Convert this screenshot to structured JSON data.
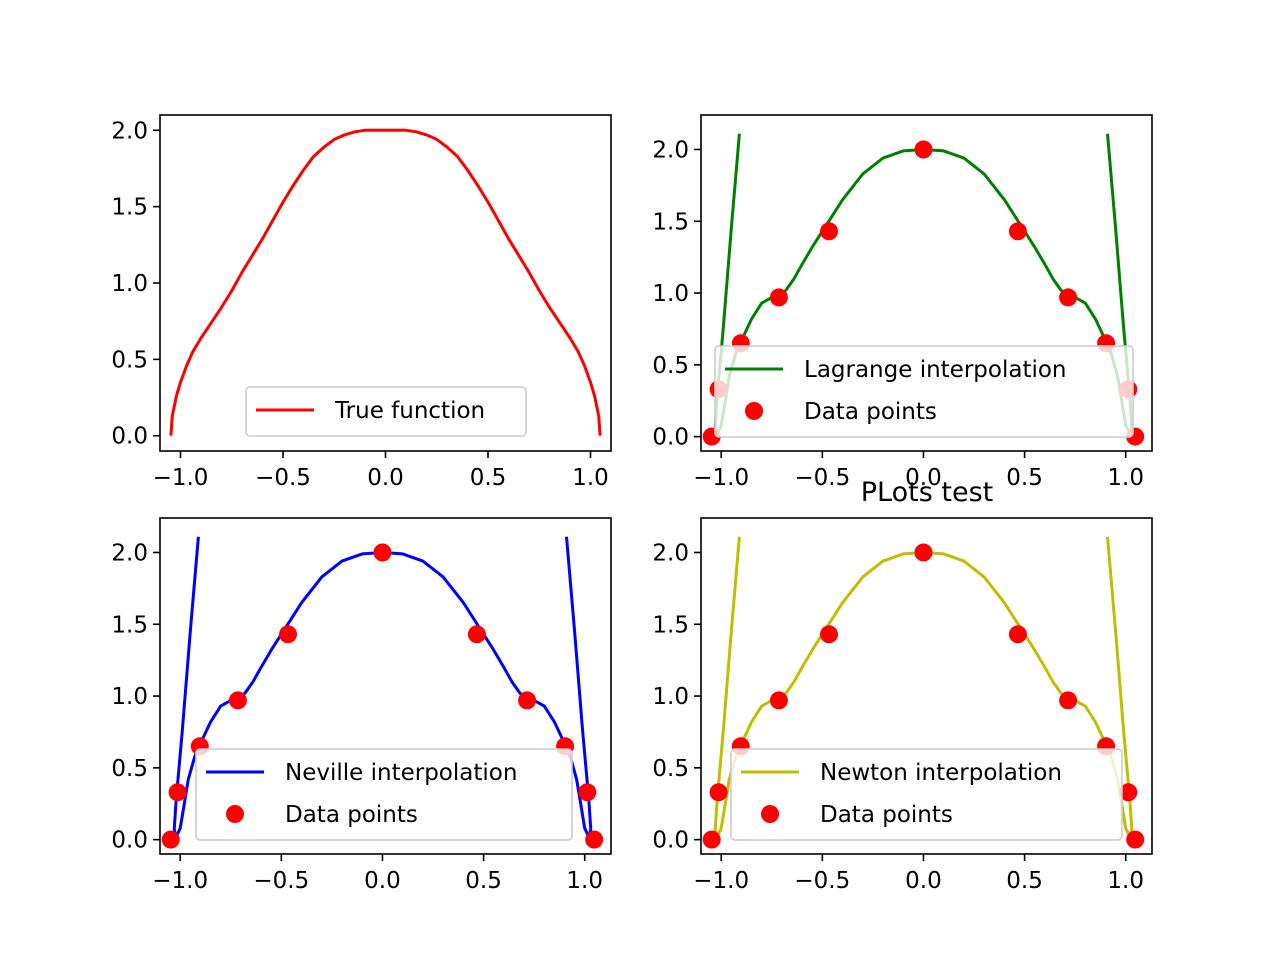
{
  "figure": {
    "title": "PLots test"
  },
  "chart_data": [
    {
      "type": "line",
      "xlim": [
        -1.1,
        1.1
      ],
      "ylim": [
        -0.1,
        2.1
      ],
      "xticks": [
        -1.0,
        -0.5,
        0.0,
        0.5,
        1.0
      ],
      "xtick_labels": [
        "−1.0",
        "−0.5",
        "0.0",
        "0.5",
        "1.0"
      ],
      "yticks": [
        0.0,
        0.5,
        1.0,
        1.5,
        2.0
      ],
      "ytick_labels": [
        "0.0",
        "0.5",
        "1.0",
        "1.5",
        "2.0"
      ],
      "legend_position": "lower center",
      "series": [
        {
          "name": "True function",
          "kind": "line",
          "color": "#ff0000",
          "x": [
            -1.047,
            -1.04,
            -1.02,
            -1.0,
            -0.97,
            -0.94,
            -0.9,
            -0.85,
            -0.8,
            -0.75,
            -0.7,
            -0.65,
            -0.6,
            -0.55,
            -0.5,
            -0.45,
            -0.4,
            -0.35,
            -0.3,
            -0.25,
            -0.2,
            -0.15,
            -0.1,
            -0.05,
            0.0,
            0.05,
            0.1,
            0.15,
            0.2,
            0.25,
            0.3,
            0.35,
            0.4,
            0.45,
            0.5,
            0.55,
            0.6,
            0.65,
            0.7,
            0.75,
            0.8,
            0.85,
            0.9,
            0.94,
            0.97,
            1.0,
            1.02,
            1.04,
            1.047
          ],
          "y": [
            0.0,
            0.13,
            0.26,
            0.35,
            0.46,
            0.55,
            0.64,
            0.74,
            0.84,
            0.95,
            1.07,
            1.18,
            1.29,
            1.41,
            1.53,
            1.64,
            1.74,
            1.83,
            1.89,
            1.94,
            1.97,
            1.99,
            2.0,
            2.0,
            2.0,
            2.0,
            2.0,
            1.99,
            1.97,
            1.94,
            1.89,
            1.83,
            1.74,
            1.64,
            1.53,
            1.41,
            1.29,
            1.18,
            1.07,
            0.95,
            0.84,
            0.74,
            0.64,
            0.55,
            0.46,
            0.35,
            0.26,
            0.13,
            0.0
          ]
        }
      ]
    },
    {
      "type": "line",
      "xlim": [
        -1.1,
        1.13
      ],
      "ylim": [
        -0.1,
        2.24
      ],
      "xticks": [
        -1.0,
        -0.5,
        0.0,
        0.5,
        1.0
      ],
      "xtick_labels": [
        "−1.0",
        "−0.5",
        "0.0",
        "0.5",
        "1.0"
      ],
      "yticks": [
        0.0,
        0.5,
        1.0,
        1.5,
        2.0
      ],
      "ytick_labels": [
        "0.0",
        "0.5",
        "1.0",
        "1.5",
        "2.0"
      ],
      "legend_position": "lower center",
      "series": [
        {
          "name": "Lagrange interpolation",
          "kind": "line",
          "color": "#008000",
          "x": [
            -0.91,
            -0.95,
            -0.99,
            -1.02,
            -1.03,
            -1.02,
            -1.0,
            -0.98,
            -0.96,
            -0.93,
            -0.91,
            -0.89,
            -0.85,
            -0.8,
            -0.75,
            -0.72,
            -0.68,
            -0.64,
            -0.6,
            -0.55,
            -0.5,
            -0.45,
            -0.4,
            -0.3,
            -0.2,
            -0.1,
            0.0,
            0.1,
            0.2,
            0.3,
            0.4,
            0.45,
            0.5,
            0.55,
            0.6,
            0.64,
            0.68,
            0.72,
            0.75,
            0.8,
            0.85,
            0.89,
            0.91,
            0.93,
            0.96,
            0.98,
            1.0,
            1.02,
            1.03,
            1.02,
            0.99,
            0.95,
            0.91
          ],
          "y": [
            2.11,
            1.45,
            0.75,
            0.28,
            0.07,
            0.02,
            0.08,
            0.25,
            0.42,
            0.57,
            0.65,
            0.7,
            0.82,
            0.93,
            0.97,
            0.98,
            1.02,
            1.1,
            1.2,
            1.32,
            1.43,
            1.54,
            1.65,
            1.83,
            1.94,
            1.99,
            2.0,
            1.99,
            1.94,
            1.83,
            1.65,
            1.54,
            1.43,
            1.32,
            1.2,
            1.1,
            1.02,
            0.98,
            0.97,
            0.93,
            0.82,
            0.7,
            0.65,
            0.57,
            0.42,
            0.25,
            0.08,
            0.02,
            0.07,
            0.28,
            0.75,
            1.45,
            2.11
          ]
        },
        {
          "name": "Data points",
          "kind": "scatter",
          "color": "#ff0000",
          "x": [
            -1.047,
            -1.013,
            -0.903,
            -0.715,
            -0.467,
            0.0,
            0.467,
            0.715,
            0.903,
            1.013,
            1.047
          ],
          "y": [
            0.0,
            0.33,
            0.65,
            0.97,
            1.43,
            2.0,
            1.43,
            0.97,
            0.65,
            0.33,
            0.0
          ]
        }
      ]
    },
    {
      "type": "line",
      "xlim": [
        -1.1,
        1.13
      ],
      "ylim": [
        -0.1,
        2.24
      ],
      "xticks": [
        -1.0,
        -0.5,
        0.0,
        0.5,
        1.0
      ],
      "xtick_labels": [
        "−1.0",
        "−0.5",
        "0.0",
        "0.5",
        "1.0"
      ],
      "yticks": [
        0.0,
        0.5,
        1.0,
        1.5,
        2.0
      ],
      "ytick_labels": [
        "0.0",
        "0.5",
        "1.0",
        "1.5",
        "2.0"
      ],
      "legend_position": "lower center",
      "series": [
        {
          "name": "Neville interpolation",
          "kind": "line",
          "color": "#0000ff",
          "x": [
            -0.91,
            -0.95,
            -0.99,
            -1.02,
            -1.03,
            -1.02,
            -1.0,
            -0.98,
            -0.96,
            -0.93,
            -0.91,
            -0.89,
            -0.85,
            -0.8,
            -0.75,
            -0.72,
            -0.68,
            -0.64,
            -0.6,
            -0.55,
            -0.5,
            -0.45,
            -0.4,
            -0.3,
            -0.2,
            -0.1,
            0.0,
            0.1,
            0.2,
            0.3,
            0.4,
            0.45,
            0.5,
            0.55,
            0.6,
            0.64,
            0.68,
            0.72,
            0.75,
            0.8,
            0.85,
            0.89,
            0.91,
            0.93,
            0.96,
            0.98,
            1.0,
            1.02,
            1.03,
            1.02,
            0.99,
            0.95,
            0.91
          ],
          "y": [
            2.11,
            1.45,
            0.75,
            0.28,
            0.07,
            0.02,
            0.08,
            0.25,
            0.42,
            0.57,
            0.65,
            0.7,
            0.82,
            0.93,
            0.97,
            0.98,
            1.02,
            1.1,
            1.2,
            1.32,
            1.43,
            1.54,
            1.65,
            1.83,
            1.94,
            1.99,
            2.0,
            1.99,
            1.94,
            1.83,
            1.65,
            1.54,
            1.43,
            1.32,
            1.2,
            1.1,
            1.02,
            0.98,
            0.97,
            0.93,
            0.82,
            0.7,
            0.65,
            0.57,
            0.42,
            0.25,
            0.08,
            0.02,
            0.07,
            0.28,
            0.75,
            1.45,
            2.11
          ]
        },
        {
          "name": "Data points",
          "kind": "scatter",
          "color": "#ff0000",
          "x": [
            -1.047,
            -1.013,
            -0.903,
            -0.715,
            -0.467,
            0.0,
            0.467,
            0.715,
            0.903,
            1.013,
            1.047
          ],
          "y": [
            0.0,
            0.33,
            0.65,
            0.97,
            1.43,
            2.0,
            1.43,
            0.97,
            0.65,
            0.33,
            0.0
          ]
        }
      ]
    },
    {
      "type": "line",
      "xlim": [
        -1.1,
        1.13
      ],
      "ylim": [
        -0.1,
        2.24
      ],
      "xticks": [
        -1.0,
        -0.5,
        0.0,
        0.5,
        1.0
      ],
      "xtick_labels": [
        "−1.0",
        "−0.5",
        "0.0",
        "0.5",
        "1.0"
      ],
      "yticks": [
        0.0,
        0.5,
        1.0,
        1.5,
        2.0
      ],
      "ytick_labels": [
        "0.0",
        "0.5",
        "1.0",
        "1.5",
        "2.0"
      ],
      "legend_position": "lower center",
      "series": [
        {
          "name": "Newton interpolation",
          "kind": "line",
          "color": "#bfbf00",
          "x": [
            -0.91,
            -0.95,
            -0.99,
            -1.02,
            -1.03,
            -1.02,
            -1.0,
            -0.98,
            -0.96,
            -0.93,
            -0.91,
            -0.89,
            -0.85,
            -0.8,
            -0.75,
            -0.72,
            -0.68,
            -0.64,
            -0.6,
            -0.55,
            -0.5,
            -0.45,
            -0.4,
            -0.3,
            -0.2,
            -0.1,
            0.0,
            0.1,
            0.2,
            0.3,
            0.4,
            0.45,
            0.5,
            0.55,
            0.6,
            0.64,
            0.68,
            0.72,
            0.75,
            0.8,
            0.85,
            0.89,
            0.91,
            0.93,
            0.96,
            0.98,
            1.0,
            1.02,
            1.03,
            1.02,
            0.99,
            0.95,
            0.91
          ],
          "y": [
            2.11,
            1.45,
            0.75,
            0.28,
            0.07,
            0.02,
            0.08,
            0.25,
            0.42,
            0.57,
            0.65,
            0.7,
            0.82,
            0.93,
            0.97,
            0.98,
            1.02,
            1.1,
            1.2,
            1.32,
            1.43,
            1.54,
            1.65,
            1.83,
            1.94,
            1.99,
            2.0,
            1.99,
            1.94,
            1.83,
            1.65,
            1.54,
            1.43,
            1.32,
            1.2,
            1.1,
            1.02,
            0.98,
            0.97,
            0.93,
            0.82,
            0.7,
            0.65,
            0.57,
            0.42,
            0.25,
            0.08,
            0.02,
            0.07,
            0.28,
            0.75,
            1.45,
            2.11
          ]
        },
        {
          "name": "Data points",
          "kind": "scatter",
          "color": "#ff0000",
          "x": [
            -1.047,
            -1.013,
            -0.903,
            -0.715,
            -0.467,
            0.0,
            0.467,
            0.715,
            0.903,
            1.013,
            1.047
          ],
          "y": [
            0.0,
            0.33,
            0.65,
            0.97,
            1.43,
            2.0,
            1.43,
            0.97,
            0.65,
            0.33,
            0.0
          ]
        }
      ]
    }
  ]
}
